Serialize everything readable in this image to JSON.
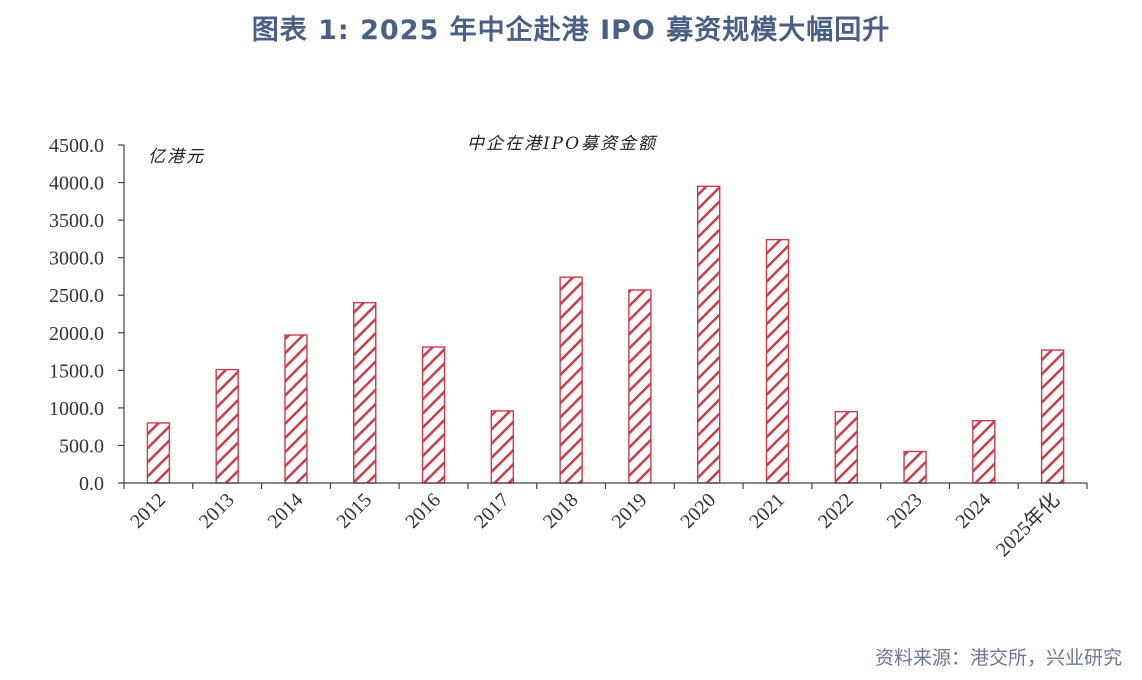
{
  "figure": {
    "title": "图表 1:  2025 年中企赴港 IPO 募资规模大幅回升",
    "source": "资料来源：港交所，兴业研究"
  },
  "colors": {
    "bar_stroke": "#cf3a4c",
    "axis": "#444444",
    "title": "#4a5f86"
  },
  "chart_data": {
    "type": "bar",
    "title": "中企在港IPO募资金额",
    "unit_label": "亿港元",
    "xlabel": "",
    "ylabel": "",
    "ylim": [
      0,
      4500
    ],
    "yticks": [
      "0.0",
      "500.0",
      "1000.0",
      "1500.0",
      "2000.0",
      "2500.0",
      "3000.0",
      "3500.0",
      "4000.0",
      "4500.0"
    ],
    "grid": false,
    "categories": [
      "2012",
      "2013",
      "2014",
      "2015",
      "2016",
      "2017",
      "2018",
      "2019",
      "2020",
      "2021",
      "2022",
      "2023",
      "2024",
      "2025年化"
    ],
    "values": [
      800,
      1510,
      1970,
      2400,
      1810,
      960,
      2740,
      2570,
      3950,
      3240,
      950,
      420,
      830,
      1770
    ]
  }
}
